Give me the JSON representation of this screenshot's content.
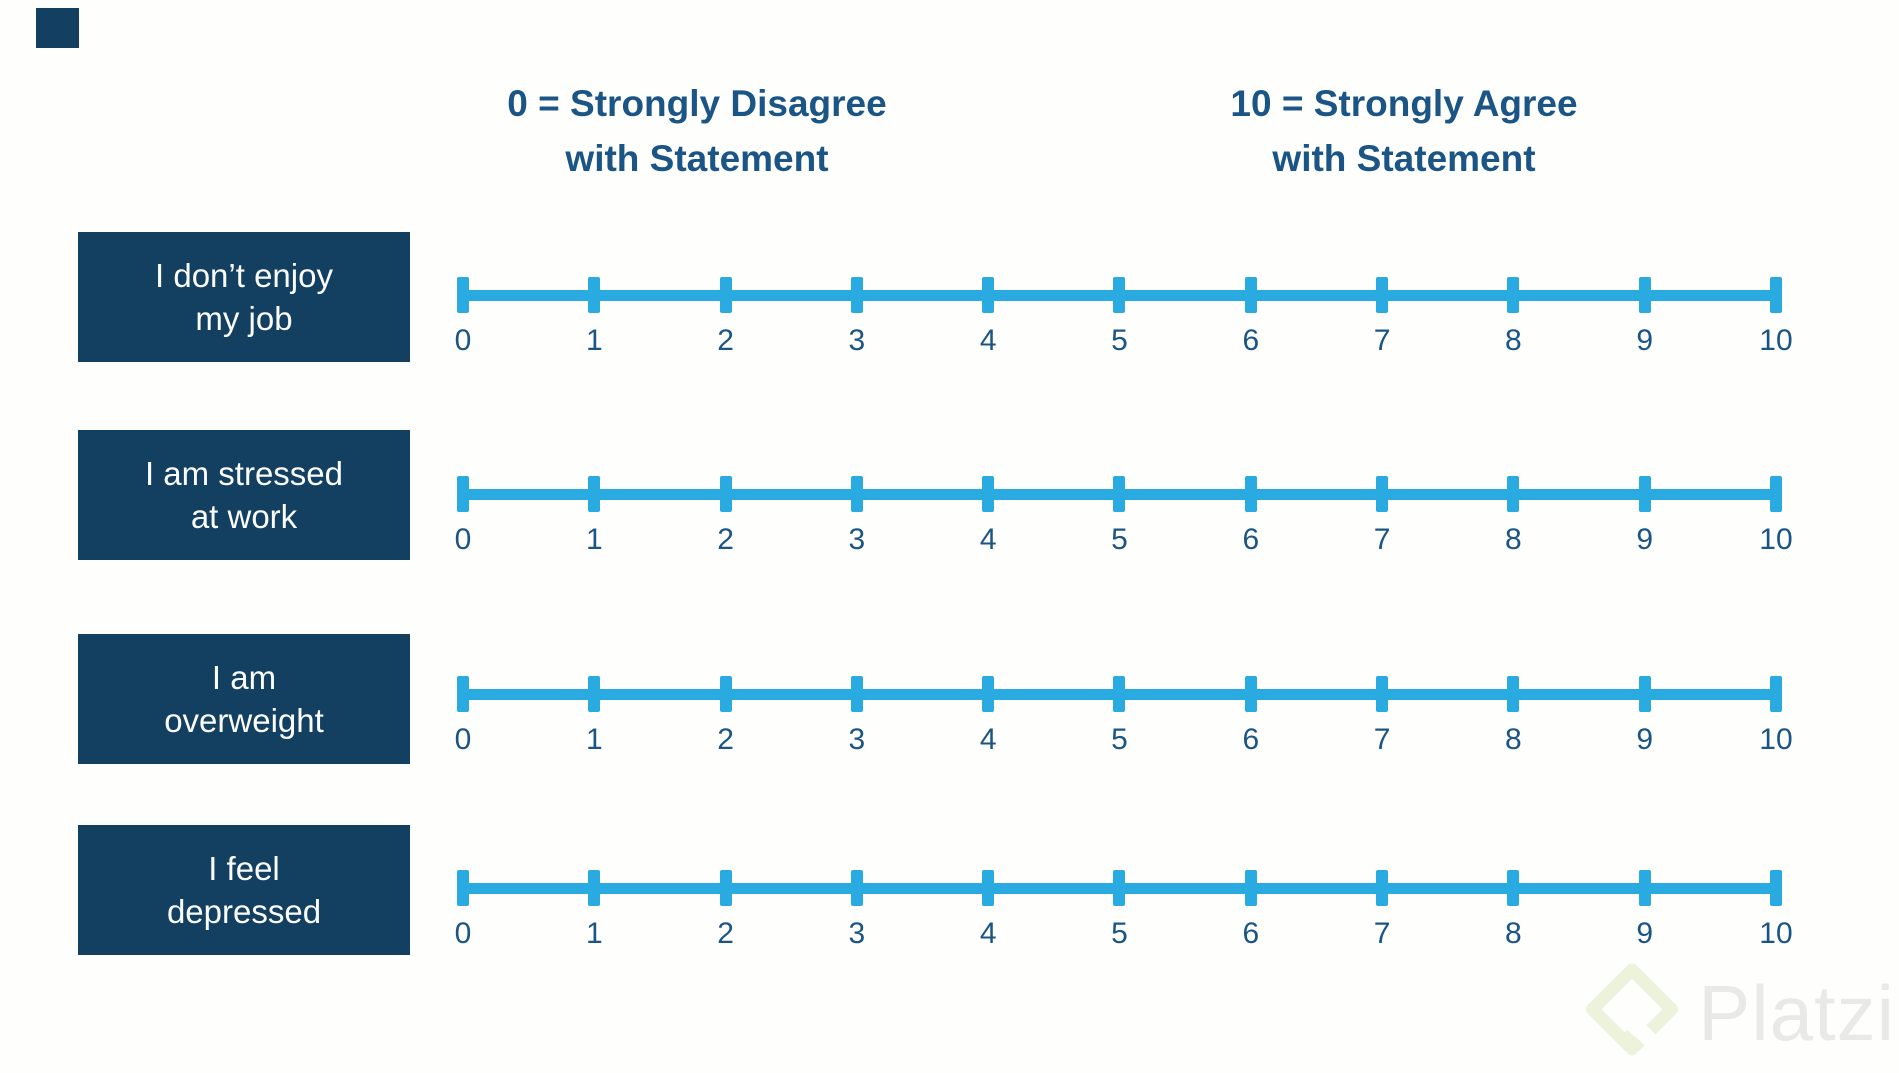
{
  "legend": {
    "left": {
      "line1": "0 = Strongly Disagree",
      "line2": "with Statement"
    },
    "right": {
      "line1": "10 = Strongly Agree",
      "line2": "with Statement"
    }
  },
  "statements": [
    {
      "line1": "I don’t enjoy",
      "line2": "my job"
    },
    {
      "line1": "I am stressed",
      "line2": "at work"
    },
    {
      "line1": "I am",
      "line2": "overweight"
    },
    {
      "line1": "I feel",
      "line2": "depressed"
    }
  ],
  "scale": {
    "min": 0,
    "max": 10,
    "tick_labels": [
      "0",
      "1",
      "2",
      "3",
      "4",
      "5",
      "6",
      "7",
      "8",
      "9",
      "10"
    ]
  },
  "watermark": {
    "text": "Platzi",
    "logo": "platzi-diamond-logo"
  },
  "colors": {
    "background": "#FEFEFC",
    "navy": "#133F60",
    "text_blue": "#1A5585",
    "scale_blue": "#29ABE2",
    "watermark_text": "#E9E9E6",
    "watermark_logo": "#EDF3DA"
  }
}
